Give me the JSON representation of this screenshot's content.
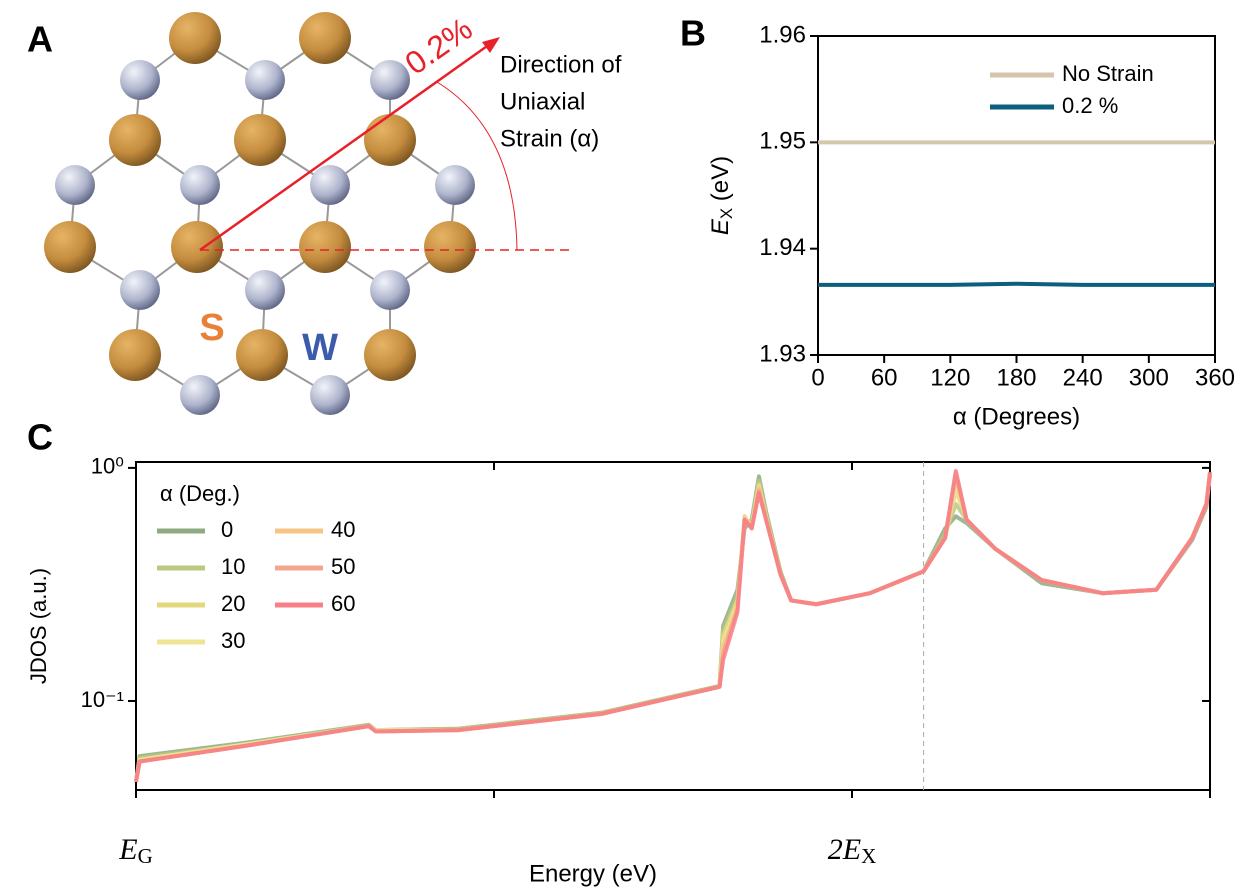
{
  "panel_labels": [
    "A",
    "B",
    "C"
  ],
  "diagram": {
    "strain_label": "0.2%",
    "direction_label": [
      "Direction of",
      "Uniaxial",
      "Strain (α)"
    ],
    "atom_labels": [
      "S",
      "W"
    ]
  },
  "chart_data": [
    {
      "type": "line",
      "xlabel": "α (Degrees)",
      "ylabel": "EX (eV)",
      "x": [
        0,
        60,
        120,
        180,
        240,
        300,
        360
      ],
      "xlim": [
        0,
        360
      ],
      "xticks": [
        0,
        60,
        120,
        180,
        240,
        300,
        360
      ],
      "ylim": [
        1.93,
        1.96
      ],
      "yticks": [
        1.93,
        1.94,
        1.95,
        1.96
      ],
      "legend": "upper right",
      "series": [
        {
          "name": "No Strain",
          "color": "#d4c6aa",
          "values": [
            1.95,
            1.95,
            1.95,
            1.95,
            1.95,
            1.95,
            1.95
          ]
        },
        {
          "name": "0.2 %",
          "color": "#0e5f7d",
          "values": [
            1.9366,
            1.9366,
            1.9366,
            1.9367,
            1.9366,
            1.9366,
            1.9366
          ]
        }
      ]
    },
    {
      "type": "line",
      "log_y": true,
      "xlabel": "Energy (eV)",
      "ylabel": "JDOS (a.u.)",
      "legend_title": "α (Deg.)",
      "legend": "upper left",
      "x": [
        0,
        0.01,
        0.3,
        0.65,
        0.67,
        0.9,
        1.3,
        1.63,
        1.64,
        1.68,
        1.7,
        1.72,
        1.74,
        1.76,
        1.8,
        1.83,
        1.9,
        2.05,
        2.2,
        2.26,
        2.29,
        2.32,
        2.4,
        2.53,
        2.7,
        2.85,
        2.95,
        2.99,
        3.0
      ],
      "xlim": [
        0,
        3
      ],
      "xticks": [
        {
          "value": 0,
          "label": "EG"
        },
        {
          "value": 2,
          "label": "2EX"
        }
      ],
      "xminor_ticks": [
        1,
        3
      ],
      "vline": 2.2,
      "ylim": [
        0.0415,
        1.06
      ],
      "yticks": [
        {
          "value": 1,
          "label": "10⁰"
        },
        {
          "value": 0.1,
          "label": "10⁻¹"
        }
      ],
      "series": [
        {
          "name": "0",
          "color": "#8faa80",
          "values": [
            0.045,
            0.058,
            0.066,
            0.079,
            0.075,
            0.076,
            0.089,
            0.116,
            0.21,
            0.3,
            0.55,
            0.6,
            0.92,
            0.65,
            0.36,
            0.27,
            0.26,
            0.29,
            0.36,
            0.55,
            0.62,
            0.58,
            0.45,
            0.32,
            0.29,
            0.3,
            0.49,
            0.68,
            0.93
          ]
        },
        {
          "name": "10",
          "color": "#b9c980",
          "values": [
            0.045,
            0.057,
            0.065,
            0.079,
            0.075,
            0.076,
            0.089,
            0.116,
            0.2,
            0.28,
            0.58,
            0.58,
            0.88,
            0.63,
            0.36,
            0.27,
            0.26,
            0.29,
            0.36,
            0.52,
            0.7,
            0.6,
            0.45,
            0.33,
            0.29,
            0.3,
            0.5,
            0.69,
            0.94
          ]
        },
        {
          "name": "20",
          "color": "#e3d97c",
          "values": [
            0.045,
            0.056,
            0.065,
            0.078,
            0.075,
            0.075,
            0.088,
            0.115,
            0.19,
            0.27,
            0.6,
            0.57,
            0.85,
            0.62,
            0.35,
            0.27,
            0.26,
            0.29,
            0.36,
            0.5,
            0.8,
            0.6,
            0.45,
            0.33,
            0.29,
            0.3,
            0.5,
            0.7,
            0.95
          ]
        },
        {
          "name": "30",
          "color": "#eee494",
          "values": [
            0.045,
            0.056,
            0.065,
            0.078,
            0.075,
            0.075,
            0.088,
            0.115,
            0.18,
            0.26,
            0.6,
            0.56,
            0.83,
            0.61,
            0.35,
            0.27,
            0.26,
            0.29,
            0.36,
            0.5,
            0.85,
            0.6,
            0.45,
            0.33,
            0.29,
            0.3,
            0.5,
            0.7,
            0.95
          ]
        },
        {
          "name": "40",
          "color": "#f6c585",
          "values": [
            0.045,
            0.055,
            0.064,
            0.078,
            0.074,
            0.075,
            0.088,
            0.115,
            0.17,
            0.25,
            0.62,
            0.55,
            0.82,
            0.6,
            0.35,
            0.27,
            0.26,
            0.29,
            0.36,
            0.5,
            0.9,
            0.6,
            0.45,
            0.33,
            0.29,
            0.3,
            0.5,
            0.7,
            0.95
          ]
        },
        {
          "name": "50",
          "color": "#f4a58e",
          "values": [
            0.045,
            0.055,
            0.064,
            0.078,
            0.074,
            0.075,
            0.088,
            0.115,
            0.16,
            0.25,
            0.6,
            0.55,
            0.8,
            0.6,
            0.35,
            0.27,
            0.26,
            0.29,
            0.36,
            0.5,
            0.95,
            0.6,
            0.45,
            0.33,
            0.29,
            0.3,
            0.5,
            0.7,
            0.95
          ]
        },
        {
          "name": "60",
          "color": "#f77f86",
          "values": [
            0.045,
            0.055,
            0.064,
            0.078,
            0.074,
            0.075,
            0.088,
            0.115,
            0.15,
            0.24,
            0.6,
            0.55,
            0.78,
            0.6,
            0.35,
            0.27,
            0.26,
            0.29,
            0.36,
            0.5,
            0.97,
            0.6,
            0.45,
            0.33,
            0.29,
            0.3,
            0.5,
            0.7,
            0.96
          ]
        }
      ]
    }
  ]
}
